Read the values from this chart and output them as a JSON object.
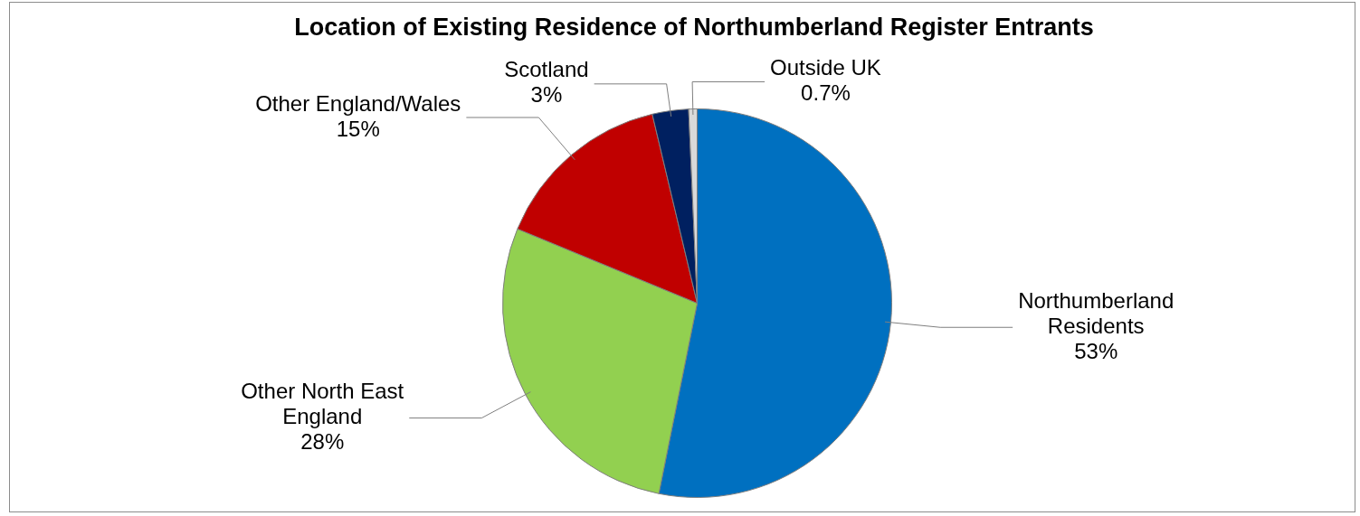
{
  "chart_data": {
    "type": "pie",
    "title": "Location of Existing Residence of Northumberland Register Entrants",
    "categories": [
      "Northumberland Residents",
      "Other North East England",
      "Other England/Wales",
      "Scotland",
      "Outside UK"
    ],
    "values": [
      53,
      28,
      15,
      3,
      0.7
    ],
    "colors": [
      "#0070c0",
      "#92d050",
      "#c00000",
      "#002060",
      "#d9d9d9"
    ],
    "value_labels": [
      "53%",
      "28%",
      "15%",
      "3%",
      "0.7%"
    ],
    "legend": false
  }
}
